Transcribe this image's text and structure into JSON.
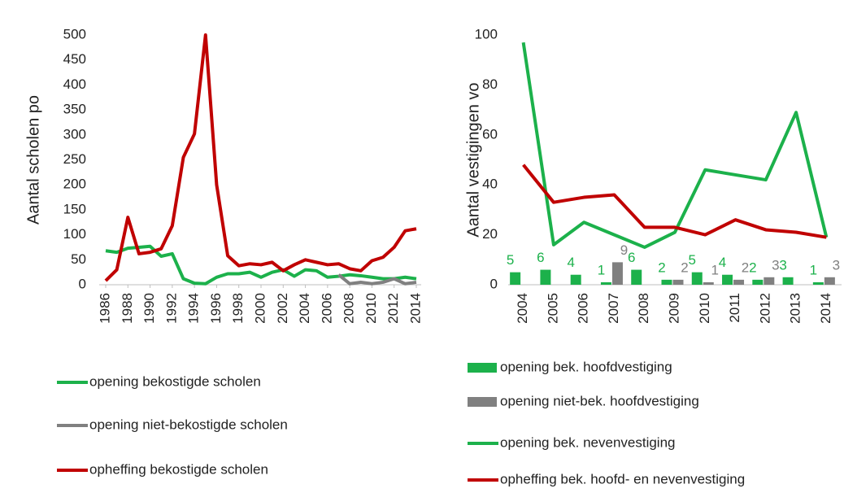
{
  "chart_data": [
    {
      "type": "line",
      "ylabel": "Aantal scholen po",
      "x": [
        1986,
        1987,
        1988,
        1989,
        1990,
        1991,
        1992,
        1993,
        1994,
        1995,
        1996,
        1997,
        1998,
        1999,
        2000,
        2001,
        2002,
        2003,
        2004,
        2005,
        2006,
        2007,
        2008,
        2009,
        2010,
        2011,
        2012,
        2013,
        2014
      ],
      "xlim": [
        1986,
        2014
      ],
      "xticks": [
        1986,
        1988,
        1990,
        1992,
        1994,
        1996,
        1998,
        2000,
        2002,
        2004,
        2006,
        2008,
        2010,
        2012,
        2014
      ],
      "ylim": [
        0,
        500
      ],
      "yticks": [
        0,
        50,
        100,
        150,
        200,
        250,
        300,
        350,
        400,
        450,
        500
      ],
      "series": [
        {
          "name": "opening bekostigde scholen",
          "color": "#1cb14b",
          "values": [
            68,
            65,
            73,
            75,
            77,
            57,
            62,
            12,
            3,
            2,
            15,
            22,
            22,
            25,
            15,
            25,
            30,
            17,
            30,
            28,
            15,
            17,
            20,
            18,
            15,
            12,
            12,
            15,
            12
          ]
        },
        {
          "name": "opening niet-bekostigde scholen",
          "color": "#808080",
          "values": [
            null,
            null,
            null,
            null,
            null,
            null,
            null,
            null,
            null,
            null,
            null,
            null,
            null,
            null,
            null,
            null,
            null,
            null,
            null,
            null,
            null,
            20,
            2,
            5,
            2,
            5,
            12,
            2,
            5
          ]
        },
        {
          "name": "opheffing bekostigde scholen",
          "color": "#c00000",
          "values": [
            8,
            30,
            135,
            62,
            65,
            72,
            118,
            255,
            302,
            500,
            200,
            58,
            38,
            42,
            40,
            45,
            28,
            40,
            50,
            45,
            40,
            42,
            32,
            28,
            48,
            55,
            75,
            108,
            112
          ]
        }
      ]
    },
    {
      "type": "combo",
      "ylabel": "Aantal vestigingen vo",
      "categories": [
        "2004",
        "2005",
        "2006",
        "2007",
        "2008",
        "2009",
        "2010",
        "2011",
        "2012",
        "2013",
        "2014"
      ],
      "ylim": [
        0,
        100
      ],
      "yticks": [
        0,
        20,
        40,
        60,
        80,
        100
      ],
      "series": [
        {
          "name": "opening bek. hoofdvestiging",
          "type": "bar",
          "color": "#1cb14b",
          "values": [
            5,
            6,
            4,
            1,
            6,
            2,
            5,
            4,
            2,
            3,
            1
          ]
        },
        {
          "name": "opening niet-bek. hoofdvestiging",
          "type": "bar",
          "color": "#808080",
          "values": [
            null,
            null,
            null,
            9,
            null,
            2,
            1,
            2,
            3,
            null,
            3
          ]
        },
        {
          "name": "opening bek. nevenvestiging",
          "type": "line",
          "color": "#1cb14b",
          "values": [
            97,
            16,
            25,
            20,
            15,
            21,
            46,
            44,
            42,
            69,
            19
          ]
        },
        {
          "name": "opheffing bek. hoofd- en nevenvestiging",
          "type": "line",
          "color": "#c00000",
          "values": [
            48,
            33,
            35,
            36,
            23,
            23,
            20,
            26,
            22,
            21,
            19
          ]
        }
      ]
    }
  ]
}
